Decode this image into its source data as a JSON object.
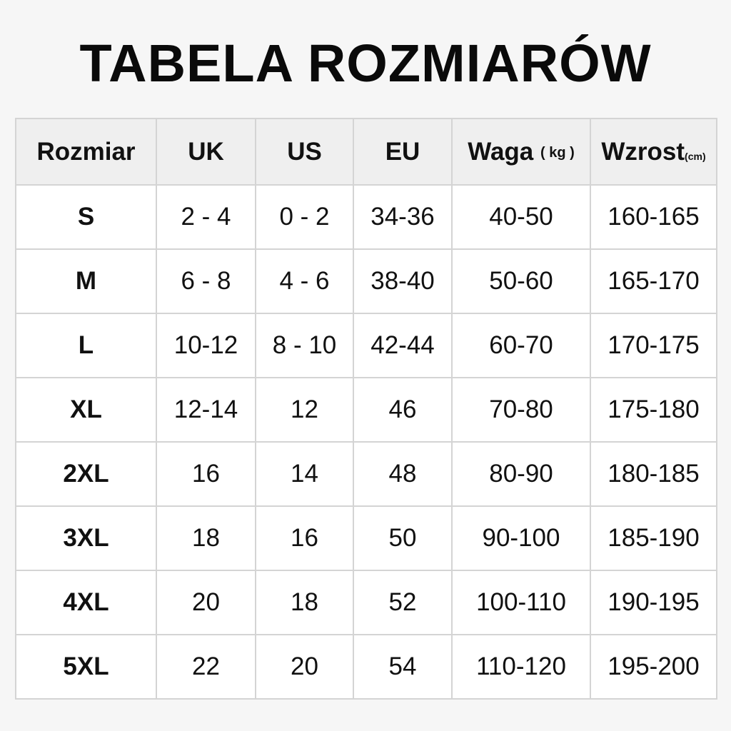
{
  "title": "TABELA ROZMIARÓW",
  "headers": {
    "size": "Rozmiar",
    "uk": "UK",
    "us": "US",
    "eu": "EU",
    "weight": "Waga",
    "weight_unit": "( kg )",
    "height": "Wzrost",
    "height_unit": "(cm)"
  },
  "rows": [
    {
      "size": "S",
      "uk": "2 - 4",
      "us": "0 - 2",
      "eu": "34-36",
      "weight": "40-50",
      "height": "160-165"
    },
    {
      "size": "M",
      "uk": "6 - 8",
      "us": "4 - 6",
      "eu": "38-40",
      "weight": "50-60",
      "height": "165-170"
    },
    {
      "size": "L",
      "uk": "10-12",
      "us": "8 - 10",
      "eu": "42-44",
      "weight": "60-70",
      "height": "170-175"
    },
    {
      "size": "XL",
      "uk": "12-14",
      "us": "12",
      "eu": "46",
      "weight": "70-80",
      "height": "175-180"
    },
    {
      "size": "2XL",
      "uk": "16",
      "us": "14",
      "eu": "48",
      "weight": "80-90",
      "height": "180-185"
    },
    {
      "size": "3XL",
      "uk": "18",
      "us": "16",
      "eu": "50",
      "weight": "90-100",
      "height": "185-190"
    },
    {
      "size": "4XL",
      "uk": "20",
      "us": "18",
      "eu": "52",
      "weight": "100-110",
      "height": "190-195"
    },
    {
      "size": "5XL",
      "uk": "22",
      "us": "20",
      "eu": "54",
      "weight": "110-120",
      "height": "195-200"
    }
  ]
}
